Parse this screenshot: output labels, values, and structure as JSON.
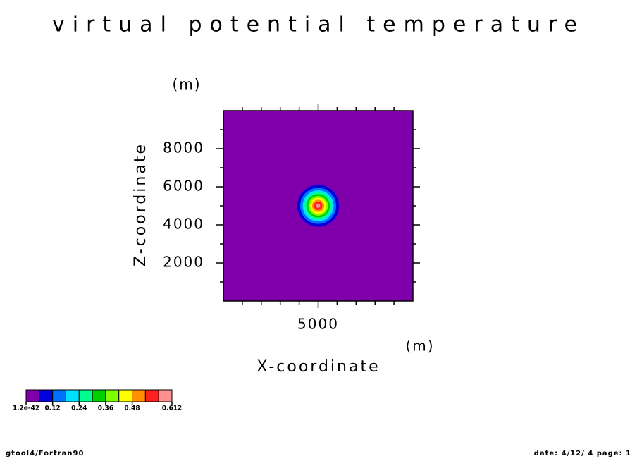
{
  "chart_data": {
    "type": "contourf",
    "title": "virtual potential temperature",
    "xlabel": "X-coordinate",
    "xunit": "(m)",
    "ylabel": "Z-coordinate",
    "yunit": "(m)",
    "xlim": [
      0,
      10000
    ],
    "ylim": [
      0,
      10000
    ],
    "xticks": [
      5000
    ],
    "yticks": [
      2000,
      4000,
      6000,
      8000
    ],
    "xminorticks": [
      1000,
      2000,
      3000,
      4000,
      6000,
      7000,
      8000,
      9000
    ],
    "yminorticks": [
      1000,
      3000,
      5000,
      7000,
      9000
    ],
    "field": {
      "center_x": 5000,
      "center_z": 5000,
      "radii": [
        1100,
        950,
        820,
        720,
        620,
        520,
        420,
        320,
        220,
        110
      ]
    },
    "colorbar": {
      "levels": [
        1.2e-42,
        0.06,
        0.12,
        0.18,
        0.24,
        0.3,
        0.36,
        0.42,
        0.48,
        0.54,
        0.6,
        0.612
      ],
      "colors": [
        "#7f00aa",
        "#0000dd",
        "#0070ff",
        "#00e0ff",
        "#00ff90",
        "#00d000",
        "#80ff00",
        "#ffff00",
        "#ff9000",
        "#ff2020",
        "#ff9090"
      ],
      "labels": [
        1.2e-42,
        0.12,
        0.24,
        0.36,
        0.48,
        0.612
      ]
    },
    "footer_left": "gtool4/Fortran90",
    "footer_right": "date: 4/12/ 4 page: 1"
  }
}
